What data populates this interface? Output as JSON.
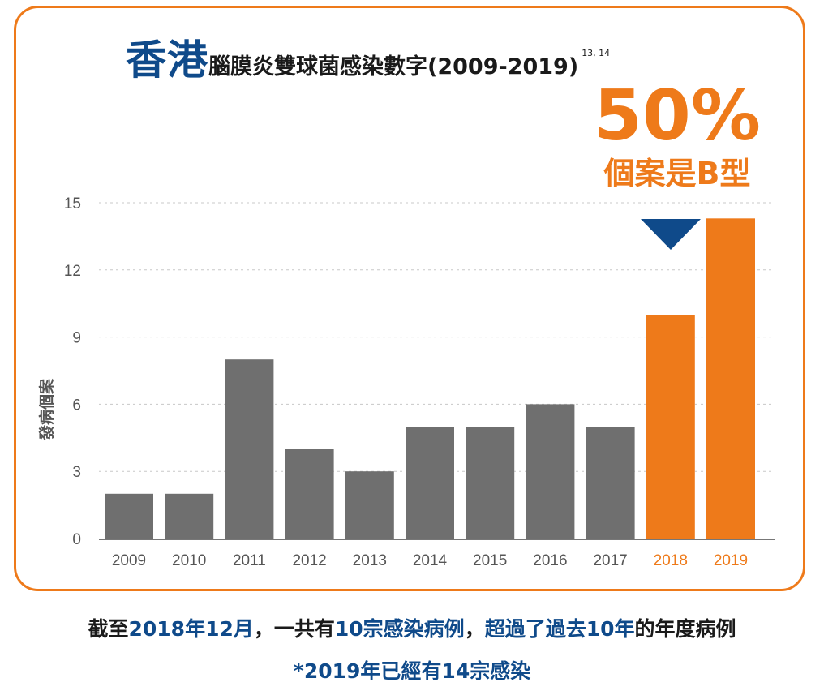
{
  "header": {
    "title_main": "香港",
    "title_sub": "腦膜炎雙球菌感染數字(2009-2019)",
    "citation": "13, 14"
  },
  "callout": {
    "percent": "50%",
    "text": "個案是B型"
  },
  "chart_data": {
    "type": "bar",
    "categories": [
      "2009",
      "2010",
      "2011",
      "2012",
      "2013",
      "2014",
      "2015",
      "2016",
      "2017",
      "2018",
      "2019"
    ],
    "values": [
      2,
      2,
      8,
      4,
      3,
      5,
      5,
      6,
      5,
      10,
      14.3
    ],
    "ylabel": "發病個案",
    "yticks": [
      0,
      3,
      6,
      9,
      12,
      15
    ],
    "ylim": [
      0,
      15
    ],
    "grid": true,
    "colors": {
      "default": "#6f6f6f",
      "highlight": "#ee7a1a",
      "axis_text": "#555555",
      "highlight_text": "#ee7a1a"
    },
    "highlight_categories": [
      "2018",
      "2019"
    ]
  },
  "footer": {
    "line1_parts": [
      {
        "text": "截至",
        "hl": false
      },
      {
        "text": "2018年12月",
        "hl": true
      },
      {
        "text": "，一共有",
        "hl": false
      },
      {
        "text": "10宗感染病例",
        "hl": true
      },
      {
        "text": "，",
        "hl": false
      },
      {
        "text": "超過了過去10年",
        "hl": true
      },
      {
        "text": "的年度病例",
        "hl": false
      }
    ],
    "line2": "*2019年已經有14宗感染"
  }
}
